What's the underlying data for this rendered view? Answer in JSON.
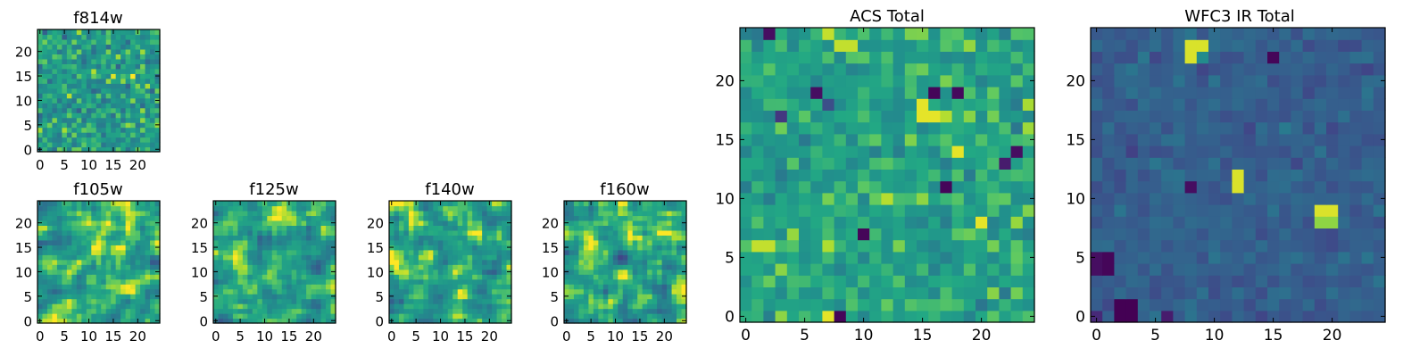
{
  "figure": {
    "panel_titles": [
      "f814w",
      "f105w",
      "f125w",
      "f140w",
      "f160w",
      "ACS Total",
      "WFC3 IR Total"
    ]
  },
  "chart_data": [
    {
      "type": "heatmap",
      "title": "f814w",
      "grid_size": 25,
      "colormap": "viridis",
      "xlim": [
        0,
        24
      ],
      "ylim": [
        0,
        24
      ],
      "xticks": [
        0,
        5,
        10,
        15,
        20
      ],
      "yticks": [
        0,
        5,
        10,
        15,
        20
      ],
      "value_range": [
        0,
        1
      ],
      "mean_level": 0.68,
      "spread": 0.22,
      "smooth": 0,
      "seed": 814,
      "features": []
    },
    {
      "type": "heatmap",
      "title": "f105w",
      "grid_size": 25,
      "colormap": "viridis",
      "xlim": [
        0,
        24
      ],
      "ylim": [
        0,
        24
      ],
      "xticks": [
        0,
        5,
        10,
        15,
        20
      ],
      "yticks": [
        0,
        5,
        10,
        15,
        20
      ],
      "value_range": [
        0,
        1
      ],
      "mean_level": 0.74,
      "spread": 0.3,
      "smooth": 1,
      "seed": 105,
      "features": []
    },
    {
      "type": "heatmap",
      "title": "f125w",
      "grid_size": 25,
      "colormap": "viridis",
      "xlim": [
        0,
        24
      ],
      "ylim": [
        0,
        24
      ],
      "xticks": [
        0,
        5,
        10,
        15,
        20
      ],
      "yticks": [
        0,
        5,
        10,
        15,
        20
      ],
      "value_range": [
        0,
        1
      ],
      "mean_level": 0.72,
      "spread": 0.3,
      "smooth": 1,
      "seed": 125,
      "features": []
    },
    {
      "type": "heatmap",
      "title": "f140w",
      "grid_size": 25,
      "colormap": "viridis",
      "xlim": [
        0,
        24
      ],
      "ylim": [
        0,
        24
      ],
      "xticks": [
        0,
        5,
        10,
        15,
        20
      ],
      "yticks": [
        0,
        5,
        10,
        15,
        20
      ],
      "value_range": [
        0,
        1
      ],
      "mean_level": 0.72,
      "spread": 0.3,
      "smooth": 1,
      "seed": 140,
      "features": []
    },
    {
      "type": "heatmap",
      "title": "f160w",
      "grid_size": 25,
      "colormap": "viridis",
      "xlim": [
        0,
        24
      ],
      "ylim": [
        0,
        24
      ],
      "xticks": [
        0,
        5,
        10,
        15,
        20
      ],
      "yticks": [
        0,
        5,
        10,
        15,
        20
      ],
      "value_range": [
        0,
        1
      ],
      "mean_level": 0.72,
      "spread": 0.3,
      "smooth": 1,
      "seed": 160,
      "features": []
    },
    {
      "type": "heatmap",
      "title": "ACS Total",
      "grid_size": 25,
      "colormap": "viridis",
      "xlim": [
        0,
        24
      ],
      "ylim": [
        0,
        24
      ],
      "xticks": [
        0,
        5,
        10,
        15,
        20
      ],
      "yticks": [
        0,
        5,
        10,
        15,
        20
      ],
      "value_range": [
        0,
        1
      ],
      "mean_level": 0.72,
      "spread": 0.17,
      "smooth": 0,
      "seed": 7,
      "features": [
        {
          "x": 7,
          "y": 0,
          "value": 0.98
        },
        {
          "x": 8,
          "y": 0,
          "value": 0.02
        },
        {
          "x": 1,
          "y": 24,
          "value": 0.5
        },
        {
          "x": 2,
          "y": 24,
          "value": 0.05
        },
        {
          "x": 7,
          "y": 24,
          "value": 0.95
        },
        {
          "x": 8,
          "y": 23,
          "value": 0.95
        },
        {
          "x": 9,
          "y": 23,
          "value": 0.95
        },
        {
          "x": 15,
          "y": 18,
          "value": 0.98
        },
        {
          "x": 16,
          "y": 17,
          "value": 0.98
        },
        {
          "x": 15,
          "y": 17,
          "value": 0.98
        },
        {
          "x": 6,
          "y": 19,
          "value": 0.05
        },
        {
          "x": 16,
          "y": 19,
          "value": 0.02
        },
        {
          "x": 18,
          "y": 19,
          "value": 0.03
        },
        {
          "x": 7,
          "y": 18,
          "value": 0.3
        },
        {
          "x": 3,
          "y": 17,
          "value": 0.2
        },
        {
          "x": 23,
          "y": 14,
          "value": 0.05
        },
        {
          "x": 22,
          "y": 13,
          "value": 0.1
        },
        {
          "x": 18,
          "y": 14,
          "value": 0.98
        },
        {
          "x": 17,
          "y": 11,
          "value": 0.02
        },
        {
          "x": 20,
          "y": 8,
          "value": 0.98
        },
        {
          "x": 10,
          "y": 7,
          "value": 0.02
        },
        {
          "x": 1,
          "y": 6,
          "value": 0.95
        },
        {
          "x": 2,
          "y": 6,
          "value": 0.95
        }
      ]
    },
    {
      "type": "heatmap",
      "title": "WFC3 IR Total",
      "grid_size": 25,
      "colormap": "viridis",
      "xlim": [
        0,
        24
      ],
      "ylim": [
        0,
        24
      ],
      "xticks": [
        0,
        5,
        10,
        15,
        20
      ],
      "yticks": [
        0,
        5,
        10,
        15,
        20
      ],
      "value_range": [
        0,
        1
      ],
      "mean_level": 0.38,
      "spread": 0.09,
      "smooth": 0,
      "seed": 33,
      "features": [
        {
          "x": 8,
          "y": 23,
          "value": 0.97
        },
        {
          "x": 9,
          "y": 23,
          "value": 0.97
        },
        {
          "x": 8,
          "y": 22,
          "value": 0.97
        },
        {
          "x": 9,
          "y": 22,
          "value": 0.6
        },
        {
          "x": 15,
          "y": 22,
          "value": 0.02
        },
        {
          "x": 12,
          "y": 11,
          "value": 0.97
        },
        {
          "x": 12,
          "y": 12,
          "value": 0.97
        },
        {
          "x": 19,
          "y": 9,
          "value": 0.97
        },
        {
          "x": 20,
          "y": 9,
          "value": 0.97
        },
        {
          "x": 19,
          "y": 8,
          "value": 0.9
        },
        {
          "x": 20,
          "y": 8,
          "value": 0.9
        },
        {
          "x": 1,
          "y": 5,
          "value": 0.02
        },
        {
          "x": 0,
          "y": 5,
          "value": 0.05
        },
        {
          "x": 1,
          "y": 4,
          "value": 0.02
        },
        {
          "x": 0,
          "y": 4,
          "value": 0.05
        },
        {
          "x": 2,
          "y": 1,
          "value": 0.0
        },
        {
          "x": 3,
          "y": 1,
          "value": 0.0
        },
        {
          "x": 2,
          "y": 0,
          "value": 0.0
        },
        {
          "x": 3,
          "y": 0,
          "value": 0.0
        },
        {
          "x": 6,
          "y": 0,
          "value": 0.1
        },
        {
          "x": 0,
          "y": 0,
          "value": 0.15
        },
        {
          "x": 8,
          "y": 11,
          "value": 0.05
        }
      ]
    }
  ]
}
